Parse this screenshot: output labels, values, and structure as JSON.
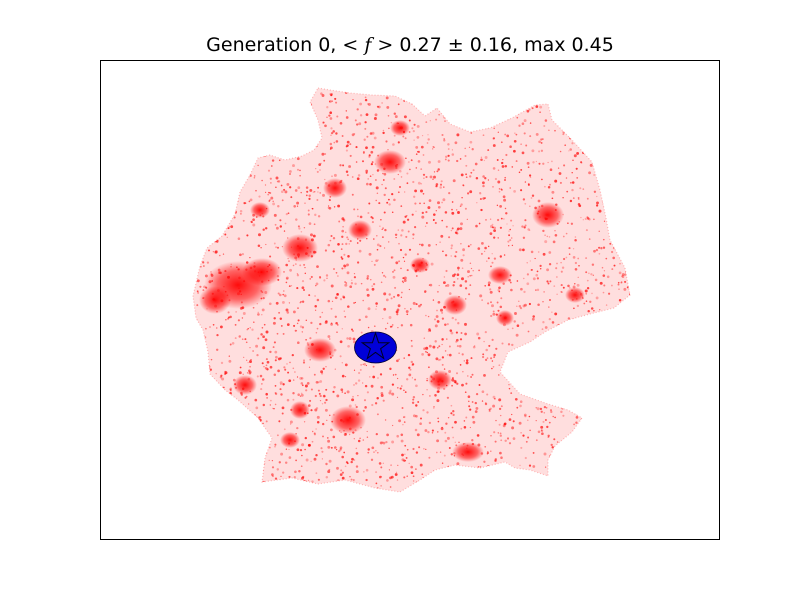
{
  "title": {
    "prefix": "Generation 0, ",
    "math_open": "< ",
    "math_var": "f",
    "math_close": " >",
    "stats": " 0.27 ± 0.16, max 0.45"
  },
  "colors": {
    "points": "#ff0000",
    "marker_fill": "#0000d8",
    "marker_edge": "#000033",
    "frame": "#000000",
    "background": "#ffffff"
  },
  "marker": {
    "shape": "star-icon"
  }
}
